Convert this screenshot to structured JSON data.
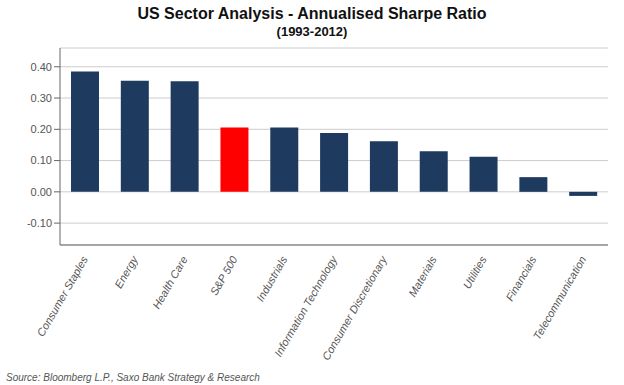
{
  "chart_data": {
    "type": "bar",
    "title": "US Sector Analysis - Annualised Sharpe Ratio",
    "subtitle": "(1993-2012)",
    "annotations": [
      "Source: Bloomberg L.P., Saxo Bank Strategy & Research"
    ],
    "categories": [
      "Consumer Staples",
      "Energy",
      "Health Care",
      "S&P 500",
      "Industrials",
      "Information Technology",
      "Consumer Discretionary",
      "Materials",
      "Utilities",
      "Financials",
      "Telecommunication"
    ],
    "values": [
      0.385,
      0.355,
      0.354,
      0.206,
      0.206,
      0.188,
      0.162,
      0.13,
      0.112,
      0.047,
      -0.013
    ],
    "colors": [
      "#1F3A5F",
      "#1F3A5F",
      "#1F3A5F",
      "#FF0000",
      "#1F3A5F",
      "#1F3A5F",
      "#1F3A5F",
      "#1F3A5F",
      "#1F3A5F",
      "#1F3A5F",
      "#1F3A5F"
    ],
    "ylim": [
      -0.17,
      0.46
    ],
    "yticks": [
      {
        "value": -0.1,
        "label": "-0.10"
      },
      {
        "value": 0.0,
        "label": "0.00"
      },
      {
        "value": 0.1,
        "label": "0.10"
      },
      {
        "value": 0.2,
        "label": "0.20"
      },
      {
        "value": 0.3,
        "label": "0.30"
      },
      {
        "value": 0.4,
        "label": "0.40"
      }
    ],
    "grid": true
  }
}
